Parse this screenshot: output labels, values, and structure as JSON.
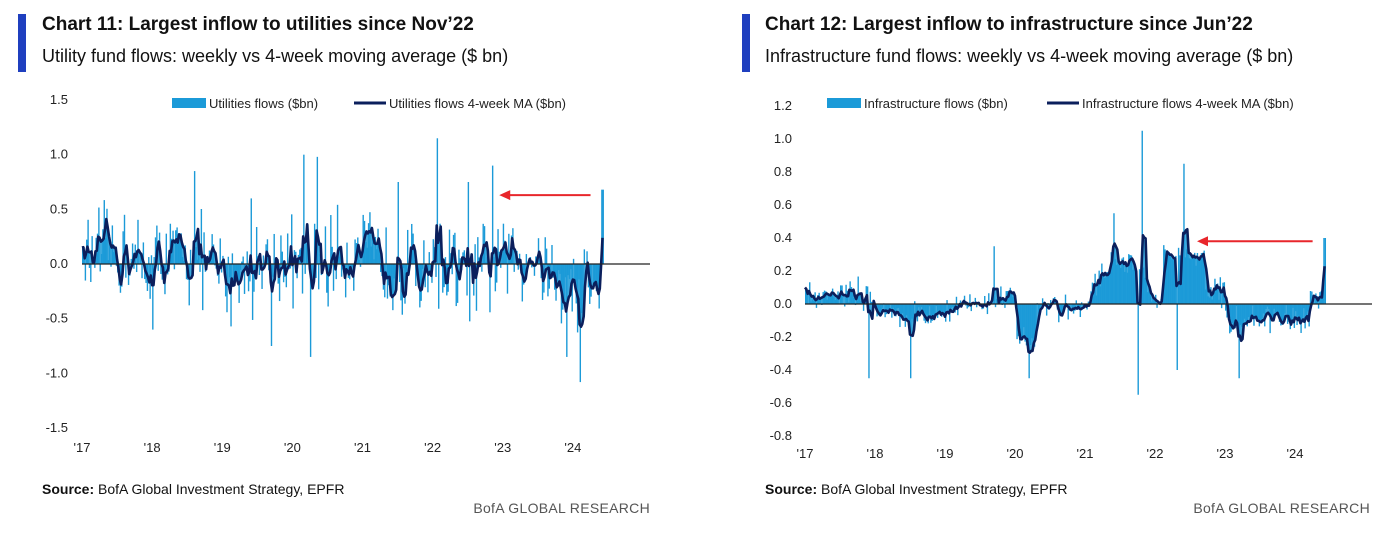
{
  "colors": {
    "accent": "#1f3fbf",
    "bar": "#1b9ad8",
    "ma": "#0b1f5c",
    "arrow": "#e8262b",
    "zero": "#222222"
  },
  "left": {
    "title": "Chart 11: Largest inflow to utilities since Nov’22",
    "subtitle": "Utility fund flows: weekly vs 4-week moving average ($ bn)",
    "source_label": "Source:",
    "source_text": " BofA Global Investment Strategy, EPFR",
    "brand": "BofA GLOBAL RESEARCH"
  },
  "right": {
    "title": "Chart 12: Largest inflow to infrastructure since Jun’22",
    "subtitle": "Infrastructure fund flows: weekly vs 4-week moving average ($ bn)",
    "source_label": "Source:",
    "source_text": " BofA Global Investment Strategy, EPFR",
    "brand": "BofA GLOBAL RESEARCH"
  },
  "chart_data": [
    {
      "type": "bar",
      "title": "Chart 11: Largest inflow to utilities since Nov’22",
      "series": [
        {
          "name": "Utilities flows ($bn)",
          "kind": "bar"
        },
        {
          "name": "Utilities flows 4-week MA ($bn)",
          "kind": "line"
        }
      ],
      "x_ticks": [
        "'17",
        "'18",
        "'19",
        "'20",
        "'21",
        "'22",
        "'23",
        "'24"
      ],
      "y_ticks": [
        "1.5",
        "1.0",
        "0.5",
        "0.0",
        "-0.5",
        "-1.0",
        "-1.5"
      ],
      "ylim": [
        -1.5,
        1.5
      ],
      "xlim": [
        2017.0,
        2025.1
      ],
      "legend": "top",
      "annotation": "red arrow pointing left at latest inflow",
      "key_points": [
        {
          "x": 2017.0,
          "y": 0.15
        },
        {
          "x": 2017.6,
          "y": 0.45
        },
        {
          "x": 2018.0,
          "y": -0.6
        },
        {
          "x": 2018.6,
          "y": 0.85
        },
        {
          "x": 2019.4,
          "y": 0.6
        },
        {
          "x": 2019.7,
          "y": -0.75
        },
        {
          "x": 2020.15,
          "y": 1.0
        },
        {
          "x": 2020.25,
          "y": -0.85
        },
        {
          "x": 2020.35,
          "y": 0.98
        },
        {
          "x": 2021.5,
          "y": 0.75
        },
        {
          "x": 2022.05,
          "y": 1.15
        },
        {
          "x": 2022.5,
          "y": 0.75
        },
        {
          "x": 2022.85,
          "y": 0.9
        },
        {
          "x": 2023.9,
          "y": -0.85
        },
        {
          "x": 2024.1,
          "y": -1.08
        },
        {
          "x": 2024.4,
          "y": 0.68
        }
      ]
    },
    {
      "type": "bar",
      "title": "Chart 12: Largest inflow to infrastructure since Jun’22",
      "series": [
        {
          "name": "Infrastructure flows ($bn)",
          "kind": "bar"
        },
        {
          "name": "Infrastructure flows 4-week MA ($bn)",
          "kind": "line"
        }
      ],
      "x_ticks": [
        "'17",
        "'18",
        "'19",
        "'20",
        "'21",
        "'22",
        "'23",
        "'24"
      ],
      "y_ticks": [
        "1.2",
        "1.0",
        "0.8",
        "0.6",
        "0.4",
        "0.2",
        "0.0",
        "-0.2",
        "-0.4",
        "-0.6",
        "-0.8"
      ],
      "ylim": [
        -0.8,
        1.2
      ],
      "xlim": [
        2017.0,
        2025.1
      ],
      "legend": "top",
      "annotation": "red arrow pointing left at latest inflow",
      "key_points": [
        {
          "x": 2017.0,
          "y": 0.1
        },
        {
          "x": 2017.9,
          "y": -0.45
        },
        {
          "x": 2018.5,
          "y": -0.45
        },
        {
          "x": 2019.7,
          "y": 0.35
        },
        {
          "x": 2020.2,
          "y": -0.45
        },
        {
          "x": 2021.4,
          "y": 0.55
        },
        {
          "x": 2021.8,
          "y": 1.05
        },
        {
          "x": 2021.75,
          "y": -0.55
        },
        {
          "x": 2022.4,
          "y": 0.85
        },
        {
          "x": 2022.3,
          "y": -0.4
        },
        {
          "x": 2023.2,
          "y": -0.45
        },
        {
          "x": 2024.4,
          "y": 0.4
        }
      ]
    }
  ]
}
